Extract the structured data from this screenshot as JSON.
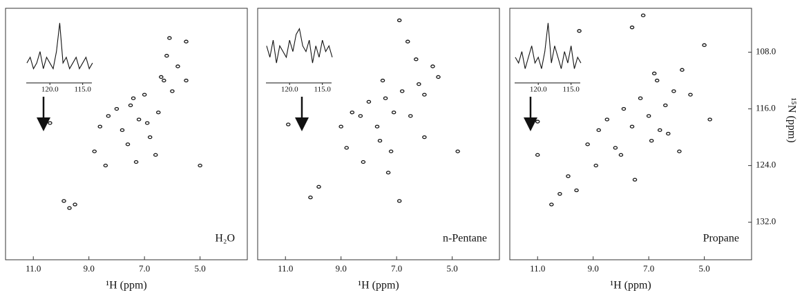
{
  "chart_data": [
    {
      "type": "scatter",
      "label": "H₂O",
      "x_label": "¹H (ppm)",
      "color": "#111111",
      "x": [
        10.4,
        9.7,
        9.9,
        9.5,
        8.6,
        8.3,
        8.0,
        7.8,
        7.5,
        7.2,
        7.0,
        6.8,
        6.5,
        6.3,
        6.0,
        5.8,
        5.5,
        8.8,
        8.4,
        7.6,
        7.3,
        6.9,
        6.6,
        6.1,
        5.5,
        7.4,
        5.0,
        6.2,
        6.4
      ],
      "y": [
        118.0,
        130.0,
        129.0,
        129.5,
        118.5,
        117.0,
        116.0,
        119.0,
        115.5,
        117.5,
        114.0,
        120.0,
        116.5,
        112.0,
        113.5,
        110.0,
        112.0,
        122.0,
        124.0,
        121.0,
        123.5,
        118.0,
        122.5,
        106.0,
        106.5,
        114.5,
        124.0,
        108.5,
        111.5
      ],
      "xlim": [
        12.0,
        3.3
      ],
      "ylim": [
        137.3,
        101.8
      ],
      "xticks": [
        {
          "value": 11,
          "label": "11.0"
        },
        {
          "value": 9,
          "label": "9.0"
        },
        {
          "value": 7,
          "label": "7.0"
        },
        {
          "value": 5,
          "label": "5.0"
        }
      ],
      "inset": {
        "type": "line",
        "x": [
          123.5,
          123,
          122.5,
          122,
          121.5,
          121,
          120.5,
          120,
          119.5,
          119,
          118.5,
          118,
          117.5,
          117,
          116.5,
          116,
          115.5,
          115,
          114.5,
          114,
          113.5
        ],
        "values": [
          3,
          4,
          2,
          3,
          5,
          2,
          4,
          3,
          2,
          5,
          10,
          3,
          4,
          2,
          3,
          4,
          2,
          3,
          4,
          2,
          3
        ],
        "xlim": [
          123.6,
          113.6
        ],
        "ylim": [
          0,
          11
        ],
        "xticks": [
          {
            "value": 120,
            "label": "120.0"
          },
          {
            "value": 115,
            "label": "115.0"
          }
        ]
      }
    },
    {
      "type": "scatter",
      "label": "n-Pentane",
      "x_label": "¹H (ppm)",
      "color": "#111111",
      "x": [
        10.9,
        10.1,
        9.8,
        9.0,
        8.6,
        8.3,
        8.0,
        7.7,
        7.4,
        7.1,
        6.8,
        6.5,
        6.2,
        6.0,
        5.7,
        5.5,
        8.8,
        8.2,
        7.6,
        7.2,
        6.9,
        6.6,
        6.3,
        6.9,
        4.8,
        7.3,
        7.5,
        6.0
      ],
      "y": [
        118.2,
        128.5,
        127.0,
        118.5,
        116.5,
        117.0,
        115.0,
        118.5,
        114.5,
        116.5,
        113.5,
        117.0,
        112.5,
        114.0,
        110.0,
        111.5,
        121.5,
        123.5,
        120.5,
        122.0,
        103.5,
        106.5,
        109.0,
        129.0,
        122.0,
        125.0,
        112.0,
        120.0
      ],
      "xlim": [
        12.0,
        3.3
      ],
      "ylim": [
        137.3,
        101.8
      ],
      "xticks": [
        {
          "value": 11,
          "label": "11.0"
        },
        {
          "value": 9,
          "label": "9.0"
        },
        {
          "value": 7,
          "label": "7.0"
        },
        {
          "value": 5,
          "label": "5.0"
        }
      ],
      "inset": {
        "type": "line",
        "x": [
          123.5,
          123,
          122.5,
          122,
          121.5,
          121,
          120.5,
          120,
          119.5,
          119,
          118.5,
          118,
          117.5,
          117,
          116.5,
          116,
          115.5,
          115,
          114.5,
          114,
          113.5
        ],
        "values": [
          6,
          4,
          7,
          3,
          6,
          5,
          4,
          7,
          5,
          8,
          9,
          6,
          5,
          7,
          3,
          6,
          4,
          7,
          5,
          6,
          4
        ],
        "xlim": [
          123.6,
          113.6
        ],
        "ylim": [
          0,
          11
        ],
        "xticks": [
          {
            "value": 120,
            "label": "120.0"
          },
          {
            "value": 115,
            "label": "115.0"
          }
        ]
      }
    },
    {
      "type": "scatter",
      "label": "Propane",
      "x_label": "¹H (ppm)",
      "y_label": "¹⁵N (ppm)",
      "color": "#111111",
      "x": [
        11.0,
        11.0,
        10.5,
        10.2,
        9.9,
        9.6,
        9.2,
        8.8,
        8.5,
        8.2,
        7.9,
        7.6,
        7.3,
        7.0,
        6.7,
        6.4,
        6.1,
        5.8,
        5.5,
        5.0,
        8.9,
        8.0,
        7.5,
        6.9,
        6.3,
        5.9,
        7.2,
        7.6,
        9.5,
        4.8,
        6.8,
        6.6
      ],
      "y": [
        117.8,
        122.5,
        129.5,
        128.0,
        125.5,
        127.5,
        121.0,
        119.0,
        117.5,
        121.5,
        116.0,
        118.5,
        114.5,
        117.0,
        112.0,
        115.5,
        113.5,
        110.5,
        114.0,
        107.0,
        124.0,
        122.5,
        126.0,
        120.5,
        119.5,
        122.0,
        102.8,
        104.5,
        105.0,
        117.5,
        111.0,
        119.0
      ],
      "xlim": [
        12.0,
        3.3
      ],
      "ylim": [
        137.3,
        101.8
      ],
      "xticks": [
        {
          "value": 11,
          "label": "11.0"
        },
        {
          "value": 9,
          "label": "9.0"
        },
        {
          "value": 7,
          "label": "7.0"
        },
        {
          "value": 5,
          "label": "5.0"
        }
      ],
      "yticks": [
        {
          "value": 108,
          "label": "108.0"
        },
        {
          "value": 116,
          "label": "116.0"
        },
        {
          "value": 124,
          "label": "124.0"
        },
        {
          "value": 132,
          "label": "132.0"
        }
      ],
      "inset": {
        "type": "line",
        "x": [
          123.5,
          123,
          122.5,
          122,
          121.5,
          121,
          120.5,
          120,
          119.5,
          119,
          118.5,
          118,
          117.5,
          117,
          116.5,
          116,
          115.5,
          115,
          114.5,
          114,
          113.5
        ],
        "values": [
          4,
          3,
          5,
          2,
          4,
          6,
          3,
          4,
          2,
          5,
          10,
          3,
          6,
          4,
          2,
          5,
          3,
          6,
          2,
          4,
          3
        ],
        "xlim": [
          123.6,
          113.6
        ],
        "ylim": [
          0,
          11
        ],
        "xticks": [
          {
            "value": 120,
            "label": "120.0"
          },
          {
            "value": 115,
            "label": "115.0"
          }
        ]
      }
    }
  ]
}
